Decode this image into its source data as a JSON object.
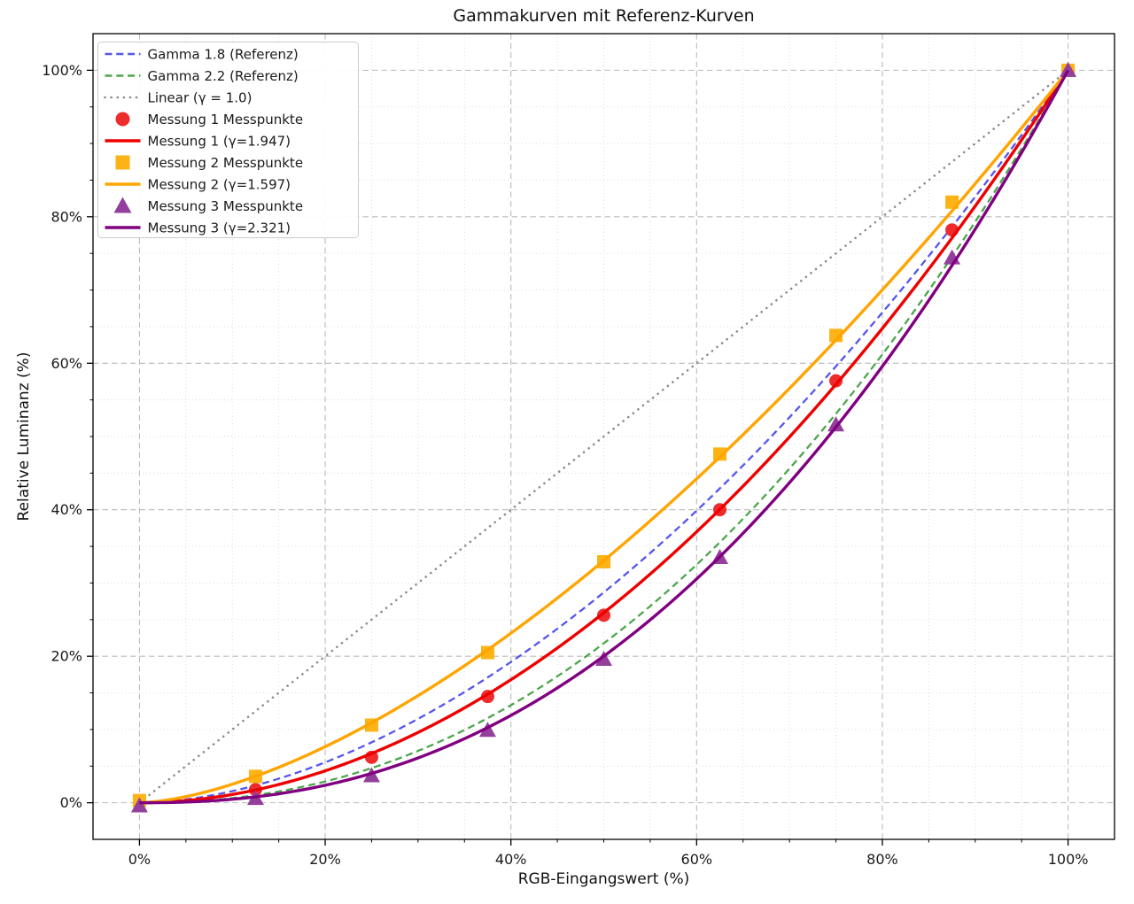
{
  "chart_data": {
    "type": "line",
    "title": "Gammakurven mit Referenz-Kurven",
    "xlabel": "RGB-Eingangswert (%)",
    "ylabel": "Relative Luminanz (%)",
    "xlim": [
      -5,
      105
    ],
    "ylim": [
      -5,
      105
    ],
    "x_ticks": {
      "values": [
        0,
        20,
        40,
        60,
        80,
        100
      ],
      "labels": [
        "0%",
        "20%",
        "40%",
        "60%",
        "80%",
        "100%"
      ]
    },
    "y_ticks": {
      "values": [
        0,
        20,
        40,
        60,
        80,
        100
      ],
      "labels": [
        "0%",
        "20%",
        "40%",
        "60%",
        "80%",
        "100%"
      ]
    },
    "minor_tick_step": 5,
    "grid": {
      "major_style": "dashed",
      "major_color": "#bbbbbb",
      "minor_style": "dotted",
      "minor_color": "#d9d9d9"
    },
    "legend_position": "upper-left",
    "measurement_x": [
      0,
      12.5,
      25,
      37.5,
      50,
      62.5,
      75,
      87.5,
      100
    ],
    "series": [
      {
        "name": "Gamma 1.8 (Referenz)",
        "kind": "curve",
        "gamma": 1.8,
        "style": "dashed",
        "color": "#5555ee",
        "width": 2.3
      },
      {
        "name": "Gamma 2.2 (Referenz)",
        "kind": "curve",
        "gamma": 2.2,
        "style": "dashed",
        "color": "#4ca64c",
        "width": 2.3
      },
      {
        "name": "Linear (γ = 1.0)",
        "kind": "curve",
        "gamma": 1.0,
        "style": "dotted",
        "color": "#8c8c8c",
        "width": 2.6
      },
      {
        "name": "Messung 1 Messpunkte",
        "kind": "scatter",
        "marker": "circle",
        "color": "#ee2c2c",
        "size": 15,
        "x": [
          0,
          12.5,
          25,
          37.5,
          50,
          62.5,
          75,
          87.5,
          100
        ],
        "y": [
          0.0,
          1.8,
          6.2,
          14.5,
          25.6,
          40.0,
          57.6,
          78.2,
          100.0
        ]
      },
      {
        "name": "Messung 1 (γ=1.947)",
        "kind": "curve",
        "gamma": 1.947,
        "style": "solid",
        "color": "#ee0000",
        "width": 3.4
      },
      {
        "name": "Messung 2 Messpunkte",
        "kind": "scatter",
        "marker": "square",
        "color": "#fcb316",
        "size": 15,
        "x": [
          0,
          12.5,
          25,
          37.5,
          50,
          62.5,
          75,
          87.5,
          100
        ],
        "y": [
          0.3,
          3.6,
          10.6,
          20.5,
          32.9,
          47.6,
          63.8,
          82.0,
          100.0
        ]
      },
      {
        "name": "Messung 2 (γ=1.597)",
        "kind": "curve",
        "gamma": 1.597,
        "style": "solid",
        "color": "#ffa502",
        "width": 3.4
      },
      {
        "name": "Messung 3 Messpunkte",
        "kind": "scatter",
        "marker": "triangle",
        "color": "#93409c",
        "size": 17,
        "x": [
          0,
          12.5,
          25,
          37.5,
          50,
          62.5,
          75,
          87.5,
          100
        ],
        "y": [
          -0.4,
          0.6,
          3.7,
          9.9,
          19.6,
          33.5,
          51.6,
          74.4,
          100.0
        ]
      },
      {
        "name": "Messung 3 (γ=2.321)",
        "kind": "curve",
        "gamma": 2.321,
        "style": "solid",
        "color": "#800080",
        "width": 3.4
      }
    ]
  }
}
